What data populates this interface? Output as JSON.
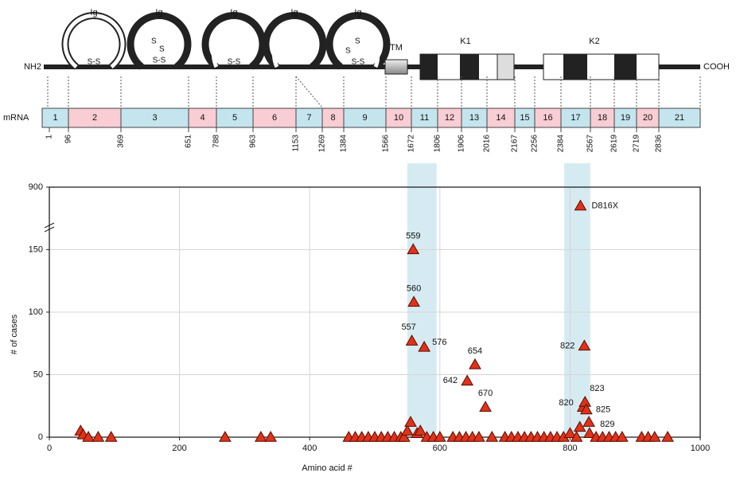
{
  "diagram": {
    "n_terminus": "NH2",
    "c_terminus": "COOH",
    "domains": [
      "Ig",
      "Ig",
      "Ig",
      "Ig",
      "Ig",
      "TM",
      "K1",
      "K2"
    ],
    "bonds": [
      "S-S",
      "S",
      "S",
      "S-S",
      "S-S",
      "S",
      "S",
      "S-S"
    ],
    "mrna_label": "mRNA",
    "exons": [
      "1",
      "2",
      "3",
      "4",
      "5",
      "6",
      "7",
      "8",
      "9",
      "10",
      "11",
      "12",
      "13",
      "14",
      "15",
      "16",
      "17",
      "18",
      "19",
      "20",
      "21"
    ],
    "boundaries": [
      1,
      96,
      369,
      651,
      788,
      963,
      1153,
      1269,
      1384,
      1566,
      1672,
      1806,
      1906,
      2016,
      2167,
      2256,
      2384,
      2567,
      2619,
      2719,
      2836
    ]
  },
  "chart_data": {
    "type": "scatter",
    "x_label": "Amino acid #",
    "y_label": "# of cases",
    "color": "#e0321a",
    "xlim": [
      0,
      1000
    ],
    "xticks": [
      0,
      200,
      400,
      600,
      800,
      1000
    ],
    "ylim": [
      0,
      900
    ],
    "yticks": [
      0,
      50,
      100,
      150,
      900
    ],
    "ybreak": [
      170,
      800
    ],
    "grid": true,
    "bands": [
      [
        550,
        595
      ],
      [
        791,
        831
      ]
    ],
    "x": [
      559,
      560,
      557,
      576,
      654,
      642,
      670,
      822,
      820,
      823,
      825,
      829,
      816,
      48,
      52,
      60,
      75,
      95,
      270,
      325,
      340,
      460,
      470,
      480,
      490,
      500,
      510,
      520,
      530,
      540,
      545,
      550,
      555,
      565,
      570,
      580,
      590,
      600,
      620,
      630,
      640,
      650,
      660,
      680,
      700,
      710,
      720,
      730,
      740,
      750,
      760,
      770,
      780,
      790,
      800,
      810,
      815,
      830,
      840,
      850,
      860,
      870,
      880,
      910,
      920,
      930,
      950
    ],
    "y": [
      150,
      108,
      77,
      72,
      58,
      45,
      24,
      73,
      24,
      28,
      22,
      12,
      850,
      5,
      2,
      0,
      0,
      0,
      0,
      0,
      0,
      0,
      0,
      0,
      0,
      0,
      0,
      0,
      0,
      0,
      0,
      5,
      12,
      3,
      5,
      0,
      0,
      0,
      0,
      0,
      0,
      0,
      0,
      0,
      0,
      0,
      0,
      0,
      0,
      0,
      0,
      0,
      0,
      0,
      3,
      0,
      8,
      3,
      0,
      0,
      0,
      0,
      0,
      0,
      0,
      0,
      0
    ],
    "point_labels": [
      "559",
      "560",
      "557",
      "576",
      "654",
      "642",
      "670",
      "822",
      "820",
      "823",
      "825",
      "829",
      "D816X",
      null,
      null,
      null,
      null,
      null,
      null,
      null,
      null,
      null,
      null,
      null,
      null,
      null,
      null,
      null,
      null,
      null,
      null,
      null,
      null,
      null,
      null,
      null,
      null,
      null,
      null,
      null,
      null,
      null,
      null,
      null,
      null,
      null,
      null,
      null,
      null,
      null,
      null,
      null,
      null,
      null,
      null,
      null,
      null,
      null,
      null,
      null,
      null,
      null,
      null,
      null,
      null,
      null,
      null
    ]
  }
}
